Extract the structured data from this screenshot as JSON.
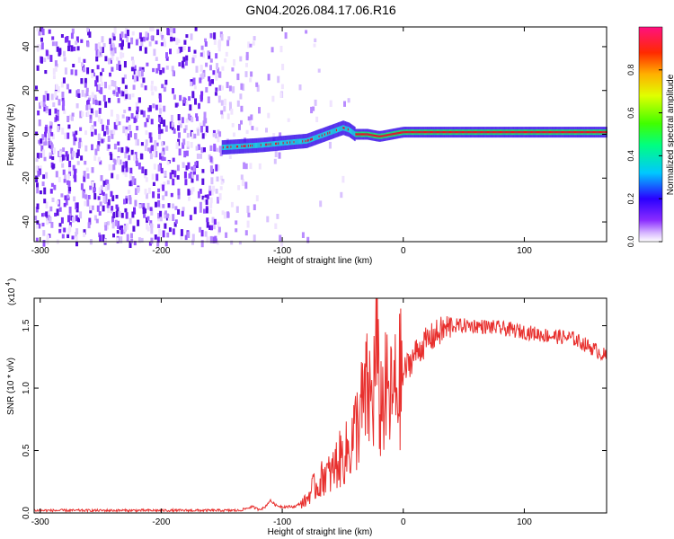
{
  "title": "GN04.2026.084.17.06.R16",
  "colors": {
    "signal_line": "#e8302e",
    "spectrogram_noise": "#6a1df0",
    "spectrogram_peak": "#e8102a"
  },
  "chart_data": [
    {
      "type": "heatmap",
      "xlabel": "Height of straight line (km)",
      "ylabel": "Frequency (Hz)",
      "xlim": [
        -305,
        168
      ],
      "ylim": [
        -49,
        49
      ],
      "xticks": [
        -300,
        -200,
        -100,
        0,
        100
      ],
      "xtick_labels": [
        "-300",
        "-200",
        "-100",
        "0",
        "100"
      ],
      "yticks": [
        -40,
        -20,
        0,
        20,
        40
      ],
      "ytick_labels": [
        "-40",
        "-20",
        "0",
        "20",
        "40"
      ],
      "colorbar": {
        "label": "Normalized spectral amplitude",
        "range": [
          0,
          1
        ],
        "ticks": [
          0,
          0.2,
          0.4,
          0.6,
          0.8
        ],
        "tick_labels": [
          "0.0",
          "0.2",
          "0.4",
          "0.6",
          "0.8"
        ],
        "colormap": "rainbow (white-purple-blue-cyan-green-yellow-red-magenta)"
      },
      "ridge": {
        "description": "spectral peak near 0 Hz",
        "x": [
          -150,
          -120,
          -100,
          -80,
          -70,
          -60,
          -50,
          -45,
          -40,
          -30,
          -20,
          -10,
          0,
          50,
          100,
          165
        ],
        "frequency": [
          -6,
          -5,
          -4,
          -3,
          -1,
          1,
          3,
          2,
          0,
          0,
          -1,
          0,
          1,
          1,
          1,
          1
        ]
      },
      "noise_region_x": [
        -305,
        -100
      ]
    },
    {
      "type": "line",
      "xlabel": "Height of straight line (km)",
      "ylabel": "SNR (10 * v/v)",
      "multiplier_label": "(x10",
      "multiplier_exponent": "4",
      "xlim": [
        -305,
        168
      ],
      "ylim": [
        0,
        1.72
      ],
      "xticks": [
        -300,
        -200,
        -100,
        0,
        100
      ],
      "xtick_labels": [
        "-300",
        "-200",
        "-100",
        "0",
        "100"
      ],
      "yticks": [
        0,
        0.5,
        1.0,
        1.5
      ],
      "ytick_labels": [
        "0.0",
        "0.5",
        "1.0",
        "1.5"
      ],
      "series": [
        {
          "x": [
            -305,
            -200,
            -135,
            -125,
            -120,
            -115,
            -110,
            -105,
            -100,
            -90,
            -80,
            -75,
            -70,
            -65,
            -60,
            -55,
            -50,
            -45,
            -40,
            -35,
            -30,
            -25,
            -22,
            -20,
            -15,
            -10,
            -5,
            0,
            10,
            20,
            30,
            40,
            60,
            80,
            100,
            120,
            140,
            150,
            160,
            168
          ],
          "y": [
            0.02,
            0.02,
            0.02,
            0.05,
            0.03,
            0.04,
            0.1,
            0.06,
            0.05,
            0.05,
            0.1,
            0.2,
            0.22,
            0.32,
            0.3,
            0.4,
            0.45,
            0.5,
            0.65,
            0.8,
            0.95,
            0.9,
            1.4,
            0.85,
            0.95,
            0.9,
            1.0,
            1.12,
            1.28,
            1.38,
            1.45,
            1.5,
            1.5,
            1.48,
            1.45,
            1.42,
            1.4,
            1.35,
            1.3,
            1.25
          ]
        }
      ]
    }
  ]
}
